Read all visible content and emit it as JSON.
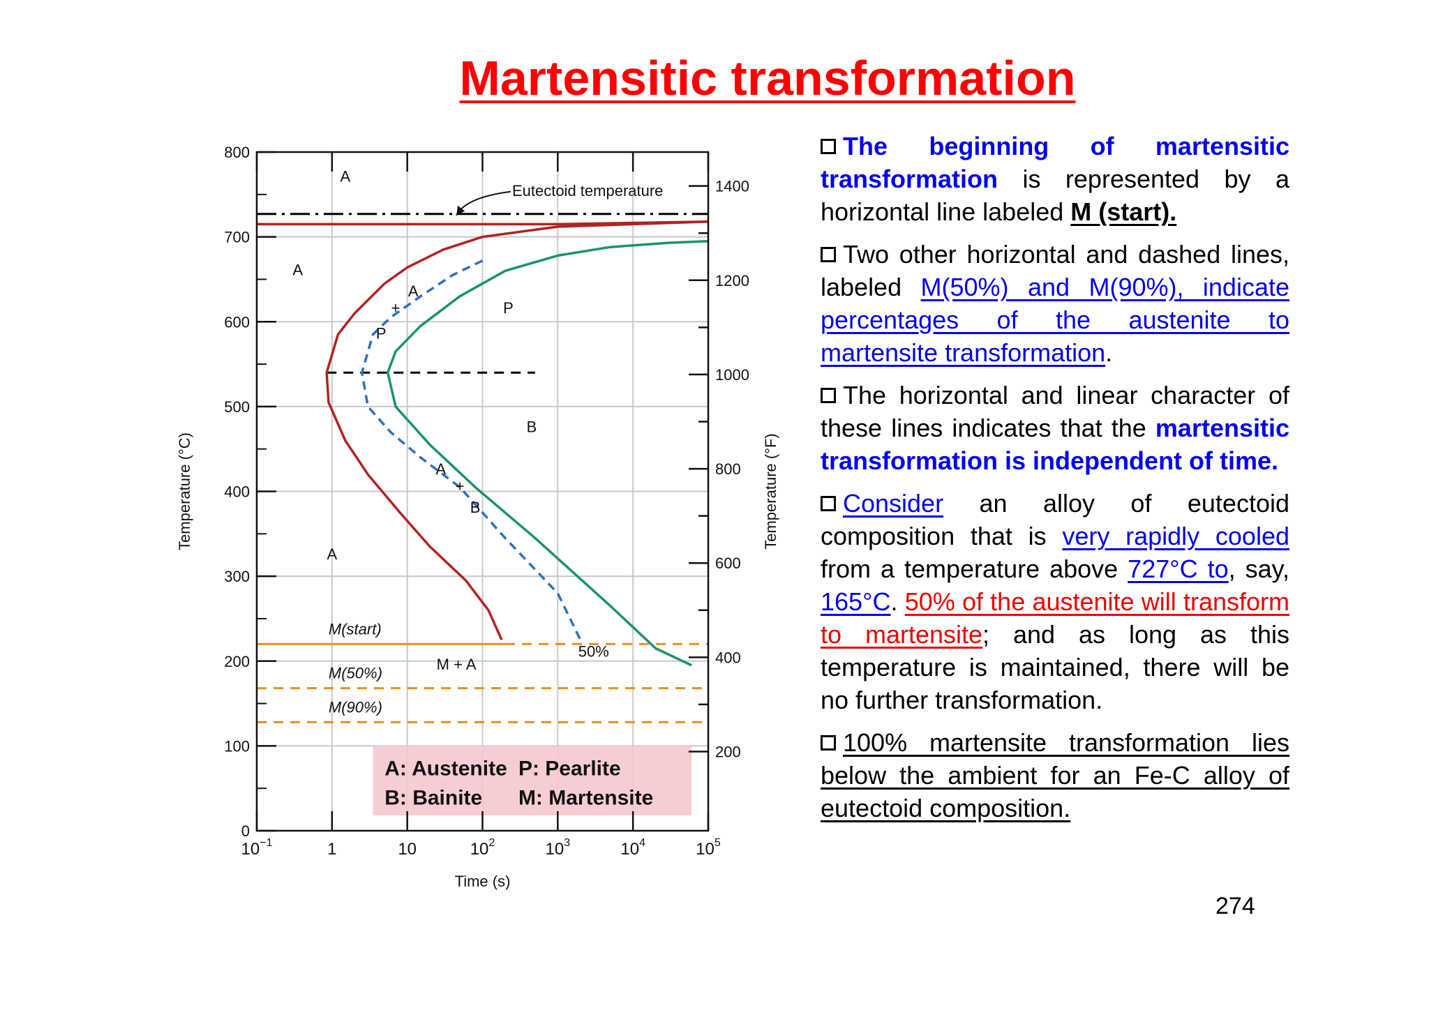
{
  "title": "Martensitic transformation",
  "chart_data": {
    "type": "line",
    "xlabel": "Time (s)",
    "ylabel": "Temperature (°C)",
    "ylabel_right": "Temperature (°F)",
    "x_scale": "log",
    "xlim": [
      0.1,
      100000
    ],
    "ylim": [
      0,
      800
    ],
    "y_ticks": [
      0,
      100,
      200,
      300,
      400,
      500,
      600,
      700,
      800
    ],
    "y_tick_labels": [
      "0",
      "100",
      "200",
      "300",
      "400",
      "500",
      "600",
      "700",
      "800"
    ],
    "x_ticks": [
      0.1,
      1,
      10,
      100,
      1000,
      10000,
      100000
    ],
    "x_tick_labels": [
      {
        "base": "10",
        "exp": "−1"
      },
      {
        "base": "1",
        "exp": ""
      },
      {
        "base": "10",
        "exp": ""
      },
      {
        "base": "10",
        "exp": "2"
      },
      {
        "base": "10",
        "exp": "3"
      },
      {
        "base": "10",
        "exp": "4"
      },
      {
        "base": "10",
        "exp": "5"
      }
    ],
    "right_ticks_F": [
      200,
      400,
      600,
      800,
      1000,
      1200,
      1400
    ],
    "grid": true,
    "series": [
      {
        "color": "#b22222",
        "dash": "",
        "points": [
          [
            0.1,
            715
          ],
          [
            1000,
            715
          ],
          [
            100000,
            718
          ]
        ]
      },
      {
        "color": "#b22222",
        "dash": "",
        "points": [
          [
            100000,
            718
          ],
          [
            10000,
            715
          ],
          [
            1000,
            712
          ],
          [
            100,
            700
          ],
          [
            30,
            685
          ],
          [
            10,
            664
          ],
          [
            5,
            645
          ],
          [
            2,
            610
          ],
          [
            1.2,
            585
          ],
          [
            0.85,
            540
          ],
          [
            0.9,
            505
          ],
          [
            1.5,
            460
          ],
          [
            3,
            420
          ],
          [
            8,
            375
          ],
          [
            20,
            335
          ],
          [
            60,
            295
          ],
          [
            120,
            260
          ],
          [
            180,
            225
          ]
        ]
      },
      {
        "color": "#3070c0",
        "dash": "12 8",
        "points": [
          [
            100,
            672
          ],
          [
            40,
            655
          ],
          [
            15,
            630
          ],
          [
            6,
            605
          ],
          [
            3.5,
            585
          ],
          [
            2.5,
            540
          ],
          [
            3,
            500
          ],
          [
            6,
            470
          ],
          [
            15,
            440
          ],
          [
            50,
            405
          ],
          [
            200,
            345
          ],
          [
            1000,
            280
          ],
          [
            2000,
            225
          ]
        ]
      },
      {
        "color": "#1a9466",
        "dash": "",
        "points": [
          [
            100000,
            695
          ],
          [
            30000,
            693
          ],
          [
            5000,
            688
          ],
          [
            1000,
            678
          ],
          [
            200,
            660
          ],
          [
            50,
            630
          ],
          [
            15,
            595
          ],
          [
            7,
            565
          ],
          [
            5.5,
            540
          ],
          [
            7,
            500
          ],
          [
            20,
            455
          ],
          [
            80,
            405
          ],
          [
            500,
            345
          ],
          [
            5000,
            265
          ],
          [
            20000,
            215
          ],
          [
            60000,
            195
          ]
        ]
      }
    ],
    "horizontal_lines": [
      {
        "label": "Eutectoid temperature",
        "y": 727,
        "color": "#000000",
        "dash": "28 8 4 8"
      },
      {
        "label": "",
        "y": 540,
        "color": "#000000",
        "dash": "14 10",
        "x_start": 0.85,
        "x_end": 500
      },
      {
        "label": "M(start)",
        "y": 220,
        "color": "#e8901e",
        "dash": "",
        "dash_after": 200
      },
      {
        "label": "M(50%)",
        "y": 168,
        "color": "#e8901e",
        "dash": "14 10"
      },
      {
        "label": "M(90%)",
        "y": 128,
        "color": "#e8901e",
        "dash": "14 10"
      }
    ],
    "annotations": [
      {
        "text": "A",
        "x": 1.5,
        "y": 765
      },
      {
        "text": "A",
        "x": 0.35,
        "y": 655
      },
      {
        "text": "A",
        "x": 12,
        "y": 630
      },
      {
        "text": "+",
        "x": 7,
        "y": 610
      },
      {
        "text": "P",
        "x": 4.5,
        "y": 580
      },
      {
        "text": "P",
        "x": 220,
        "y": 610
      },
      {
        "text": "B",
        "x": 450,
        "y": 470
      },
      {
        "text": "A",
        "x": 28,
        "y": 420
      },
      {
        "text": "+",
        "x": 50,
        "y": 400
      },
      {
        "text": "B",
        "x": 80,
        "y": 375
      },
      {
        "text": "A",
        "x": 1.0,
        "y": 320
      },
      {
        "text": "M + A",
        "x": 45,
        "y": 190
      },
      {
        "text": "50%",
        "x": 3000,
        "y": 205
      }
    ],
    "legend_box": {
      "lines": [
        [
          "A: Austenite",
          "P: Pearlite"
        ],
        [
          "B: Bainite",
          "M: Martensite"
        ]
      ]
    }
  },
  "bullets": {
    "b1": {
      "part1": "The beginning of martensitic transformation",
      "part2": " is represented by a horizontal line labeled ",
      "part3": "M (start)."
    },
    "b2": {
      "part1": "Two other horizontal and dashed lines, labeled ",
      "part2": "M(50%) and M(90%), indicate percentages of the austenite to martensite transformation",
      "part3": "."
    },
    "b3": {
      "part1": "The horizontal and linear character of these lines indicates that the ",
      "part2": "martensitic transformation is independent of time."
    },
    "b4": {
      "part1": "Consider",
      "part2": " an alloy of eutectoid composition that is ",
      "part3": "very rapidly cooled",
      "part4": " from a temperature above ",
      "part5": "727°C to",
      "part6": ", say, ",
      "part7": "165°C",
      "part8": ". ",
      "part9": "50% of the austenite will transform to martensite",
      "part10": "; and as long as this temperature is maintained, there will be no further transformation."
    },
    "b5": {
      "part1": "100% martensite transformation lies below the ambient for an Fe-C alloy of eutectoid composition."
    }
  },
  "page_number": "274"
}
